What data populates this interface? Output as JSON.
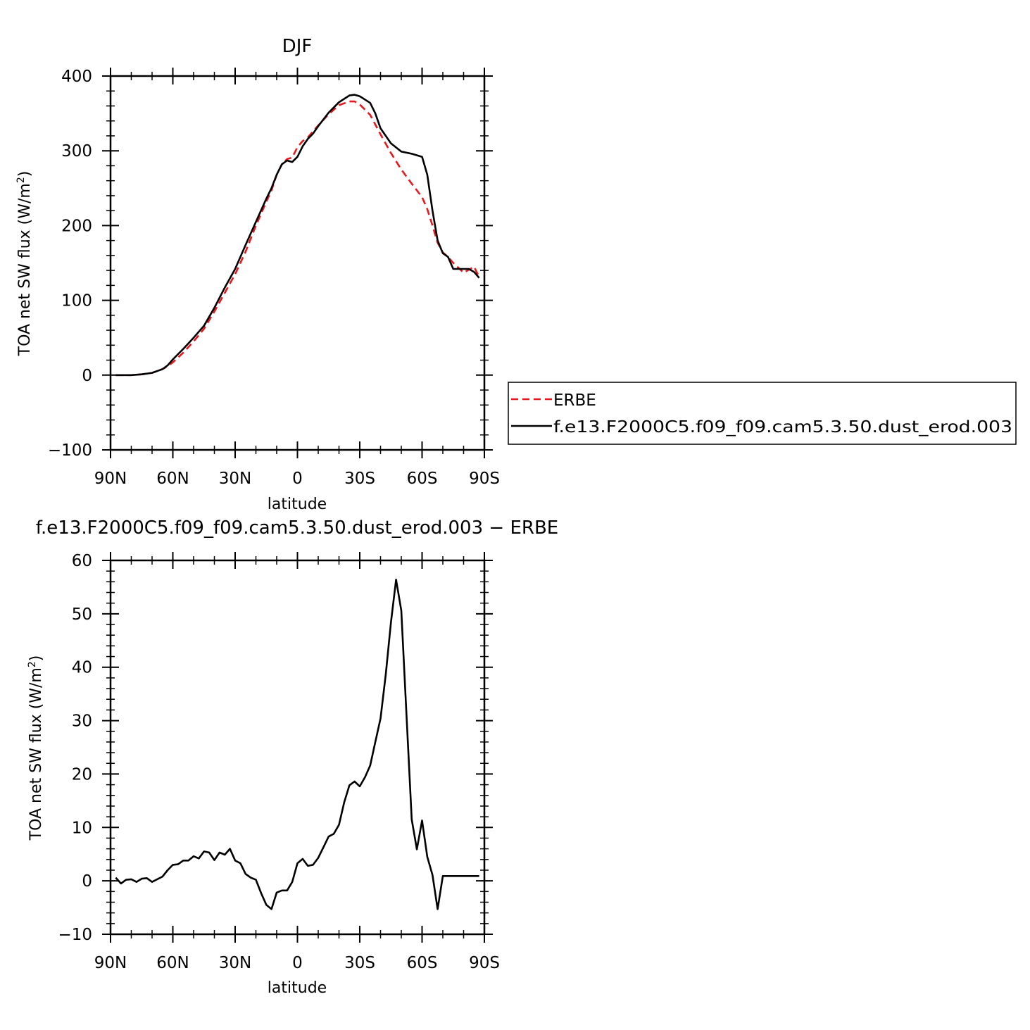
{
  "chart_data": [
    {
      "type": "line",
      "title": "DJF",
      "xlabel": "latitude",
      "ylabel": "TOA net SW flux (W/m",
      "ylabel_sup": "2",
      "ylabel_close": ")",
      "xlim": [
        -90,
        90
      ],
      "ylim": [
        -100,
        400
      ],
      "xticks": [
        -90,
        -60,
        -30,
        0,
        30,
        60,
        90
      ],
      "xtick_labels": [
        "90N",
        "60N",
        "30N",
        "0",
        "30S",
        "60S",
        "90S"
      ],
      "yticks": [
        -100,
        0,
        100,
        200,
        300,
        400
      ],
      "ytick_labels": [
        "−100",
        "0",
        "100",
        "200",
        "300",
        "400"
      ],
      "legend_position": "right, outside plot",
      "series": [
        {
          "name": "ERBE",
          "color": "#e8191e",
          "dash": "dashed",
          "x": [
            -87.5,
            -85,
            -80,
            -75,
            -70,
            -65,
            -62.5,
            -60,
            -55,
            -50,
            -45,
            -40,
            -35,
            -30,
            -25,
            -20,
            -15,
            -12.5,
            -10,
            -7.5,
            -5,
            -2.5,
            0,
            2.5,
            5,
            7.5,
            10,
            15,
            20,
            25,
            27.5,
            30,
            35,
            40,
            45,
            50,
            55,
            60,
            62.5,
            65,
            67.5,
            70,
            72.5,
            75,
            80,
            82.5,
            85,
            87.5
          ],
          "y": [
            0,
            0,
            0,
            1,
            3,
            8,
            12,
            17,
            30,
            45,
            62,
            85,
            110,
            135,
            165,
            200,
            232,
            247,
            268,
            282,
            289,
            291,
            305,
            313,
            318,
            326,
            334,
            349,
            361,
            366,
            366,
            362,
            348,
            322,
            297,
            275,
            256,
            238,
            222,
            200,
            177,
            164,
            158,
            150,
            137,
            141,
            145,
            131
          ]
        },
        {
          "name": "f.e13.F2000C5.f09_f09.cam5.3.50.dust_erod.003",
          "color": "#000000",
          "dash": "solid",
          "x": [
            -87.5,
            -85,
            -80,
            -75,
            -70,
            -65,
            -62.5,
            -60,
            -55,
            -50,
            -45,
            -40,
            -35,
            -30,
            -25,
            -20,
            -15,
            -12.5,
            -10,
            -7.5,
            -5,
            -2.5,
            0,
            2.5,
            5,
            7.5,
            10,
            15,
            20,
            25,
            27.5,
            30,
            35,
            37.5,
            40,
            45,
            50,
            55,
            60,
            62.5,
            65,
            67.5,
            70,
            72.5,
            75,
            77.5,
            80,
            82.5,
            85,
            87.5
          ],
          "y": [
            0,
            0,
            0,
            1,
            3,
            8,
            13,
            21,
            35,
            50,
            66,
            90,
            117,
            142,
            174,
            205,
            236,
            250,
            268,
            282,
            287,
            285,
            292,
            306,
            316,
            323,
            333,
            351,
            365,
            374,
            375,
            373,
            364,
            350,
            330,
            310,
            299,
            296,
            292,
            268,
            220,
            180,
            163,
            158,
            142,
            142,
            142,
            142,
            138,
            130
          ]
        }
      ]
    },
    {
      "type": "line",
      "title": "f.e13.F2000C5.f09_f09.cam5.3.50.dust_erod.003 − ERBE",
      "xlabel": "latitude",
      "ylabel": "TOA net SW flux (W/m",
      "ylabel_sup": "2",
      "ylabel_close": ")",
      "xlim": [
        -90,
        90
      ],
      "ylim": [
        -10,
        60
      ],
      "xticks": [
        -90,
        -60,
        -30,
        0,
        30,
        60,
        90
      ],
      "xtick_labels": [
        "90N",
        "60N",
        "30N",
        "0",
        "30S",
        "60S",
        "90S"
      ],
      "yticks": [
        -10,
        0,
        10,
        20,
        30,
        40,
        50,
        60
      ],
      "ytick_labels": [
        "−10",
        "0",
        "10",
        "20",
        "30",
        "40",
        "50",
        "60"
      ],
      "series": [
        {
          "color": "#000000",
          "dash": "solid",
          "x": [
            -87.5,
            -85,
            -82.5,
            -80,
            -77.5,
            -75,
            -72.5,
            -70,
            -67.5,
            -65,
            -62.5,
            -60,
            -57.5,
            -55,
            -52.5,
            -50,
            -47.5,
            -45,
            -42.5,
            -40,
            -37.5,
            -35,
            -32.5,
            -30,
            -27.5,
            -25,
            -22.5,
            -20,
            -17.5,
            -15,
            -12.5,
            -10,
            -7.5,
            -5,
            -2.5,
            0,
            2.5,
            5,
            7.5,
            10,
            12.5,
            15,
            17.5,
            20,
            22.5,
            25,
            27.5,
            30,
            32.5,
            35,
            37.5,
            40,
            42.5,
            45,
            47.5,
            50,
            52.5,
            55,
            57.5,
            60,
            62.5,
            65,
            67.5,
            70,
            72.5,
            75,
            77.5,
            80,
            82.5,
            85,
            87.5
          ],
          "y": [
            0.6,
            -0.5,
            0.2,
            0.3,
            -0.2,
            0.4,
            0.5,
            -0.2,
            0.3,
            0.8,
            2.0,
            3.0,
            3.1,
            3.8,
            3.8,
            4.6,
            4.2,
            5.5,
            5.3,
            3.9,
            5.3,
            4.9,
            6.0,
            3.8,
            3.3,
            1.3,
            0.6,
            0.2,
            -2.3,
            -4.5,
            -5.3,
            -2.2,
            -1.8,
            -1.8,
            -0.2,
            3.3,
            4.1,
            2.8,
            3.0,
            4.3,
            6.3,
            8.3,
            8.8,
            10.5,
            14.7,
            17.9,
            18.6,
            17.7,
            19.4,
            21.6,
            26.0,
            30.4,
            38.6,
            48.4,
            56.4,
            50.6,
            31.0,
            11.5,
            5.9,
            11.3,
            4.5,
            1.1,
            -5.3,
            0.9,
            0.9,
            0.9,
            0.9,
            0.9,
            0.9,
            0.9,
            0.9
          ]
        }
      ]
    }
  ]
}
